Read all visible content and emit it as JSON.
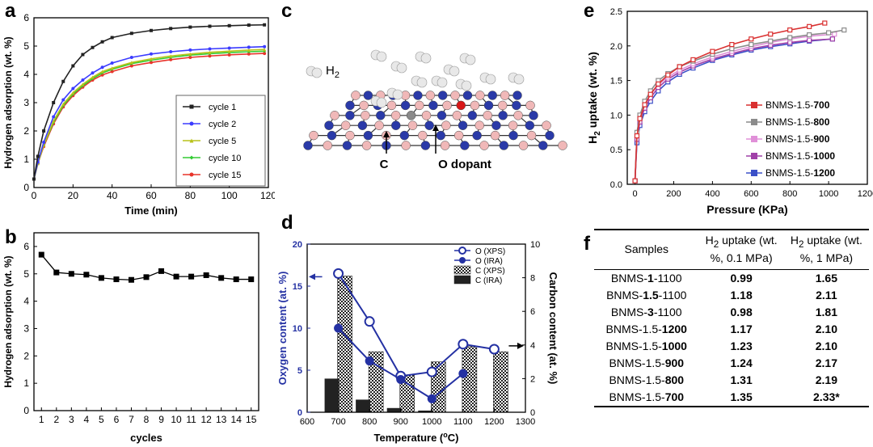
{
  "panels": {
    "a": "a",
    "b": "b",
    "c": "c",
    "d": "d",
    "e": "e",
    "f": "f"
  },
  "chart_data": [
    {
      "id": "a",
      "type": "line",
      "xlabel": "Time (min)",
      "ylabel": "Hydrogen adsorption (wt. %)",
      "xlim": [
        0,
        120
      ],
      "ylim": [
        0,
        6
      ],
      "xticks": [
        0,
        20,
        40,
        60,
        80,
        100,
        120
      ],
      "yticks": [
        0,
        1,
        2,
        3,
        4,
        5,
        6
      ],
      "legend_position": "bottom-right",
      "series": [
        {
          "name": "cycle 1",
          "color": "#222222",
          "marker": "square",
          "x": [
            0,
            2,
            5,
            10,
            15,
            20,
            25,
            30,
            35,
            40,
            50,
            60,
            70,
            80,
            90,
            100,
            110,
            118
          ],
          "y": [
            0.3,
            1.1,
            2.0,
            3.0,
            3.75,
            4.3,
            4.7,
            4.95,
            5.15,
            5.3,
            5.45,
            5.55,
            5.62,
            5.67,
            5.7,
            5.72,
            5.74,
            5.75
          ]
        },
        {
          "name": "cycle 2",
          "color": "#3b3bff",
          "marker": "circle",
          "x": [
            0,
            2,
            5,
            10,
            15,
            20,
            25,
            30,
            35,
            40,
            50,
            60,
            70,
            80,
            90,
            100,
            110,
            118
          ],
          "y": [
            0.3,
            0.9,
            1.6,
            2.5,
            3.1,
            3.5,
            3.8,
            4.05,
            4.25,
            4.4,
            4.6,
            4.72,
            4.8,
            4.86,
            4.9,
            4.93,
            4.96,
            4.98
          ]
        },
        {
          "name": "cycle 5",
          "color": "#b9c21a",
          "marker": "triangle",
          "x": [
            0,
            2,
            5,
            10,
            15,
            20,
            25,
            30,
            35,
            40,
            50,
            60,
            70,
            80,
            90,
            100,
            110,
            118
          ],
          "y": [
            0.3,
            0.85,
            1.5,
            2.35,
            2.95,
            3.35,
            3.65,
            3.9,
            4.1,
            4.22,
            4.42,
            4.55,
            4.65,
            4.72,
            4.78,
            4.82,
            4.86,
            4.88
          ]
        },
        {
          "name": "cycle 10",
          "color": "#33cc33",
          "marker": "diamond",
          "x": [
            0,
            2,
            5,
            10,
            15,
            20,
            25,
            30,
            35,
            40,
            50,
            60,
            70,
            80,
            90,
            100,
            110,
            118
          ],
          "y": [
            0.3,
            0.85,
            1.5,
            2.3,
            2.9,
            3.3,
            3.6,
            3.85,
            4.05,
            4.18,
            4.38,
            4.5,
            4.6,
            4.68,
            4.73,
            4.77,
            4.8,
            4.82
          ]
        },
        {
          "name": "cycle 15",
          "color": "#e8332a",
          "marker": "circle",
          "x": [
            0,
            2,
            5,
            10,
            15,
            20,
            25,
            30,
            35,
            40,
            50,
            60,
            70,
            80,
            90,
            100,
            110,
            118
          ],
          "y": [
            0.3,
            0.85,
            1.45,
            2.25,
            2.85,
            3.25,
            3.55,
            3.8,
            3.98,
            4.1,
            4.3,
            4.42,
            4.52,
            4.6,
            4.65,
            4.69,
            4.72,
            4.74
          ]
        }
      ]
    },
    {
      "id": "b",
      "type": "line",
      "xlabel": "cycles",
      "ylabel": "Hydrogen adsorption (wt. %)",
      "xlim": [
        0.5,
        15.5
      ],
      "ylim": [
        0,
        6.5
      ],
      "xticks": [
        1,
        2,
        3,
        4,
        5,
        6,
        7,
        8,
        9,
        10,
        11,
        12,
        13,
        14,
        15
      ],
      "yticks": [
        0,
        1,
        2,
        3,
        4,
        5,
        6
      ],
      "series": [
        {
          "name": "",
          "color": "#000000",
          "marker": "square",
          "x": [
            1,
            2,
            3,
            4,
            5,
            6,
            7,
            8,
            9,
            10,
            11,
            12,
            13,
            14,
            15
          ],
          "y": [
            5.7,
            5.05,
            5.0,
            4.97,
            4.85,
            4.8,
            4.78,
            4.88,
            5.1,
            4.9,
            4.9,
            4.95,
            4.85,
            4.8,
            4.8
          ]
        }
      ]
    },
    {
      "id": "d",
      "type": "bar",
      "xlabel": "Temperature (oC)",
      "ylabel": "Oxygen content (at. %)",
      "y2label": "Carbon content (at. %)",
      "xlim": [
        600,
        1300
      ],
      "ylim": [
        0,
        20
      ],
      "y2lim": [
        0,
        10
      ],
      "xticks": [
        600,
        700,
        800,
        900,
        1000,
        1100,
        1200,
        1300
      ],
      "yticks": [
        0,
        5,
        10,
        15,
        20
      ],
      "y2ticks": [
        0,
        2,
        4,
        6,
        8,
        10
      ],
      "legend_position": "top-right",
      "bars": [
        {
          "name": "C (XPS)",
          "pattern": "checker",
          "x": [
            700,
            800,
            900,
            1000,
            1100,
            1200
          ],
          "y2": [
            8.1,
            3.6,
            2.2,
            3.0,
            3.9,
            3.6
          ]
        },
        {
          "name": "C (IRA)",
          "pattern": "solid",
          "x": [
            700,
            800,
            900,
            1000,
            1100
          ],
          "y2": [
            2.0,
            0.75,
            0.25,
            0.1,
            0.0
          ]
        }
      ],
      "series": [
        {
          "name": "O (XPS)",
          "color": "#2431a3",
          "marker": "open-circle",
          "x": [
            700,
            800,
            900,
            1000,
            1100,
            1200
          ],
          "y": [
            16.5,
            10.8,
            4.3,
            4.8,
            8.1,
            7.5
          ]
        },
        {
          "name": "O (IRA)",
          "color": "#2431a3",
          "marker": "filled-circle",
          "x": [
            700,
            800,
            900,
            1000,
            1100
          ],
          "y": [
            10.0,
            6.1,
            3.9,
            1.6,
            4.6
          ]
        }
      ]
    },
    {
      "id": "e",
      "type": "line",
      "xlabel": "Pressure (KPa)",
      "ylabel": "H2 uptake (wt. %)",
      "xlim": [
        -40,
        1200
      ],
      "ylim": [
        0,
        2.5
      ],
      "xticks": [
        0,
        200,
        400,
        600,
        800,
        1000,
        1200
      ],
      "yticks": [
        0.0,
        0.5,
        1.0,
        1.5,
        2.0,
        2.5
      ],
      "legend_position": "bottom-right",
      "series": [
        {
          "name_prefix": "BNMS-1.5-",
          "name_bold": "700",
          "color": "#d93030",
          "x": [
            0,
            10,
            25,
            50,
            80,
            120,
            170,
            230,
            300,
            400,
            500,
            600,
            700,
            800,
            900,
            980
          ],
          "y": [
            0.05,
            0.7,
            0.95,
            1.15,
            1.3,
            1.45,
            1.58,
            1.7,
            1.8,
            1.92,
            2.02,
            2.1,
            2.17,
            2.23,
            2.28,
            2.33
          ]
        },
        {
          "name_prefix": "BNMS-1.5-",
          "name_bold": "800",
          "color": "#8c8c8c",
          "x": [
            0,
            10,
            25,
            50,
            80,
            120,
            170,
            230,
            300,
            400,
            500,
            600,
            700,
            800,
            900,
            1000,
            1080
          ],
          "y": [
            0.05,
            0.75,
            1.0,
            1.2,
            1.35,
            1.5,
            1.6,
            1.7,
            1.78,
            1.88,
            1.96,
            2.02,
            2.07,
            2.12,
            2.16,
            2.19,
            2.23
          ]
        },
        {
          "name_prefix": "BNMS-1.5-",
          "name_bold": "900",
          "color": "#e090d8",
          "x": [
            0,
            10,
            25,
            50,
            80,
            120,
            170,
            230,
            300,
            400,
            500,
            600,
            700,
            800,
            900,
            1030
          ],
          "y": [
            0.05,
            0.7,
            0.95,
            1.15,
            1.3,
            1.44,
            1.55,
            1.65,
            1.74,
            1.84,
            1.92,
            1.99,
            2.05,
            2.1,
            2.14,
            2.17
          ]
        },
        {
          "name_prefix": "BNMS-1.5-",
          "name_bold": "1000",
          "color": "#a040a8",
          "x": [
            0,
            10,
            25,
            50,
            80,
            120,
            170,
            230,
            300,
            400,
            500,
            600,
            700,
            800,
            900,
            1020
          ],
          "y": [
            0.05,
            0.65,
            0.9,
            1.1,
            1.25,
            1.4,
            1.52,
            1.62,
            1.71,
            1.81,
            1.89,
            1.96,
            2.01,
            2.05,
            2.08,
            2.1
          ]
        },
        {
          "name_prefix": "BNMS-1.5-",
          "name_bold": "1200",
          "color": "#3b50c8",
          "x": [
            0,
            10,
            25,
            50,
            80,
            120,
            170,
            230,
            300,
            400,
            500,
            600,
            700,
            800,
            900,
            1020
          ],
          "y": [
            0.05,
            0.6,
            0.85,
            1.05,
            1.2,
            1.35,
            1.48,
            1.59,
            1.68,
            1.79,
            1.87,
            1.94,
            1.99,
            2.03,
            2.07,
            2.1
          ]
        }
      ]
    },
    {
      "id": "f",
      "type": "table",
      "headers": [
        "Samples",
        "H2 uptake (wt. %, 0.1 MPa)",
        "H2 uptake (wt. %, 1 MPa)"
      ],
      "rows": [
        {
          "pre": "BNMS-",
          "bold": "1",
          "post": "-1100",
          "v1": "0.99",
          "v2": "1.65"
        },
        {
          "pre": "BNMS-",
          "bold": "1.5",
          "post": "-1100",
          "v1": "1.18",
          "v2": "2.11"
        },
        {
          "pre": "BNMS-",
          "bold": "3",
          "post": "-1100",
          "v1": "0.98",
          "v2": "1.81"
        },
        {
          "pre": "BNMS-1.5-",
          "bold": "1200",
          "post": "",
          "v1": "1.17",
          "v2": "2.10"
        },
        {
          "pre": "BNMS-1.5-",
          "bold": "1000",
          "post": "",
          "v1": "1.23",
          "v2": "2.10"
        },
        {
          "pre": "BNMS-1.5-",
          "bold": "900",
          "post": "",
          "v1": "1.24",
          "v2": "2.17"
        },
        {
          "pre": "BNMS-1.5-",
          "bold": "800",
          "post": "",
          "v1": "1.31",
          "v2": "2.19"
        },
        {
          "pre": "BNMS-1.5-",
          "bold": "700",
          "post": "",
          "v1": "1.35",
          "v2": "2.33*"
        }
      ]
    }
  ],
  "diagram_c": {
    "h2_label": "H2",
    "c_label": "C",
    "o_label": "O dopant",
    "colors": {
      "boron": "#f0b8b8",
      "nitrogen": "#2a3aa8",
      "carbon": "#8a8a8a",
      "oxygen": "#d81818",
      "hydrogen": "#e8e8e8"
    }
  },
  "table_f": {
    "h_samples": "Samples",
    "h1_a": "H",
    "h1_sub": "2",
    "h1_b": " uptake (wt. %, 0.1 MPa)",
    "h2_a": "H",
    "h2_sub": "2",
    "h2_b": " uptake (wt. %, 1 MPa)"
  }
}
